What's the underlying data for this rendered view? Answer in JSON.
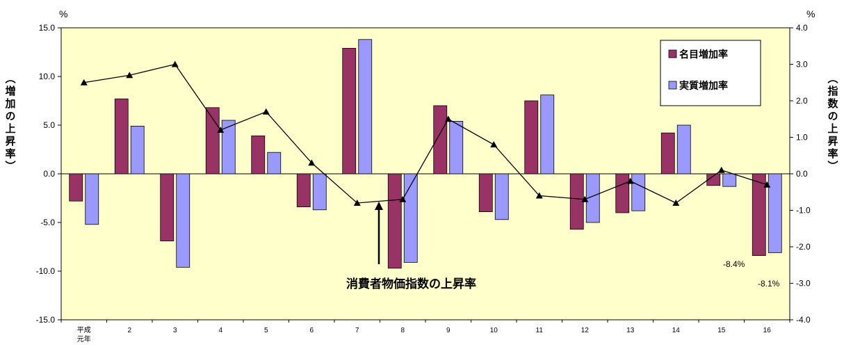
{
  "chart_data": {
    "type": "bar",
    "categories": [
      "平成元年",
      "2",
      "3",
      "4",
      "5",
      "6",
      "7",
      "8",
      "9",
      "10",
      "11",
      "12",
      "13",
      "14",
      "15",
      "16"
    ],
    "series": [
      {
        "name": "名目増加率",
        "type": "bar",
        "axis": "left",
        "color": "#993366",
        "values": [
          -2.8,
          7.7,
          -6.9,
          6.8,
          3.9,
          -3.4,
          12.9,
          -9.7,
          7.0,
          -3.9,
          7.5,
          -5.7,
          -4.0,
          4.2,
          -1.2,
          -8.4
        ]
      },
      {
        "name": "実質増加率",
        "type": "bar",
        "axis": "left",
        "color": "#9999FF",
        "values": [
          -5.2,
          4.9,
          -9.6,
          5.5,
          2.2,
          -3.7,
          13.8,
          -9.1,
          5.4,
          -4.7,
          8.1,
          -5.0,
          -3.8,
          5.0,
          -1.3,
          -8.1
        ]
      },
      {
        "name": "消費者物価指数の上昇率",
        "type": "line",
        "axis": "right",
        "color": "#000000",
        "values": [
          2.5,
          2.7,
          3.0,
          1.2,
          1.7,
          0.3,
          -0.8,
          -0.7,
          1.5,
          0.8,
          -0.6,
          -0.7,
          -0.2,
          -0.8,
          0.1,
          -0.3
        ]
      }
    ],
    "y_left": {
      "unit": "%",
      "label": "（増加の上昇率）",
      "lim": [
        -15,
        15
      ],
      "ticks": [
        "15.0",
        "10.0",
        "5.0",
        "0.0",
        "-5.0",
        "-10.0",
        "-15.0"
      ]
    },
    "y_right": {
      "unit": "%",
      "label": "（指数の上昇率）",
      "lim": [
        -4,
        4
      ],
      "ticks": [
        "4.0",
        "3.0",
        "2.0",
        "1.0",
        "0.0",
        "-1.0",
        "-2.0",
        "-3.0",
        "-4.0"
      ]
    },
    "legend": {
      "placement": "top-right",
      "entries": [
        "名目増加率",
        "実質増加率"
      ]
    },
    "annotations": {
      "cpi_line_label": "消費者物価指数の上昇率",
      "nominal_last_label": "-8.4%",
      "real_last_label": "-8.1%"
    },
    "colors": {
      "plot_background": "#FFFFCC",
      "nominal": "#993366",
      "real": "#9999FF",
      "line": "#000000"
    }
  }
}
